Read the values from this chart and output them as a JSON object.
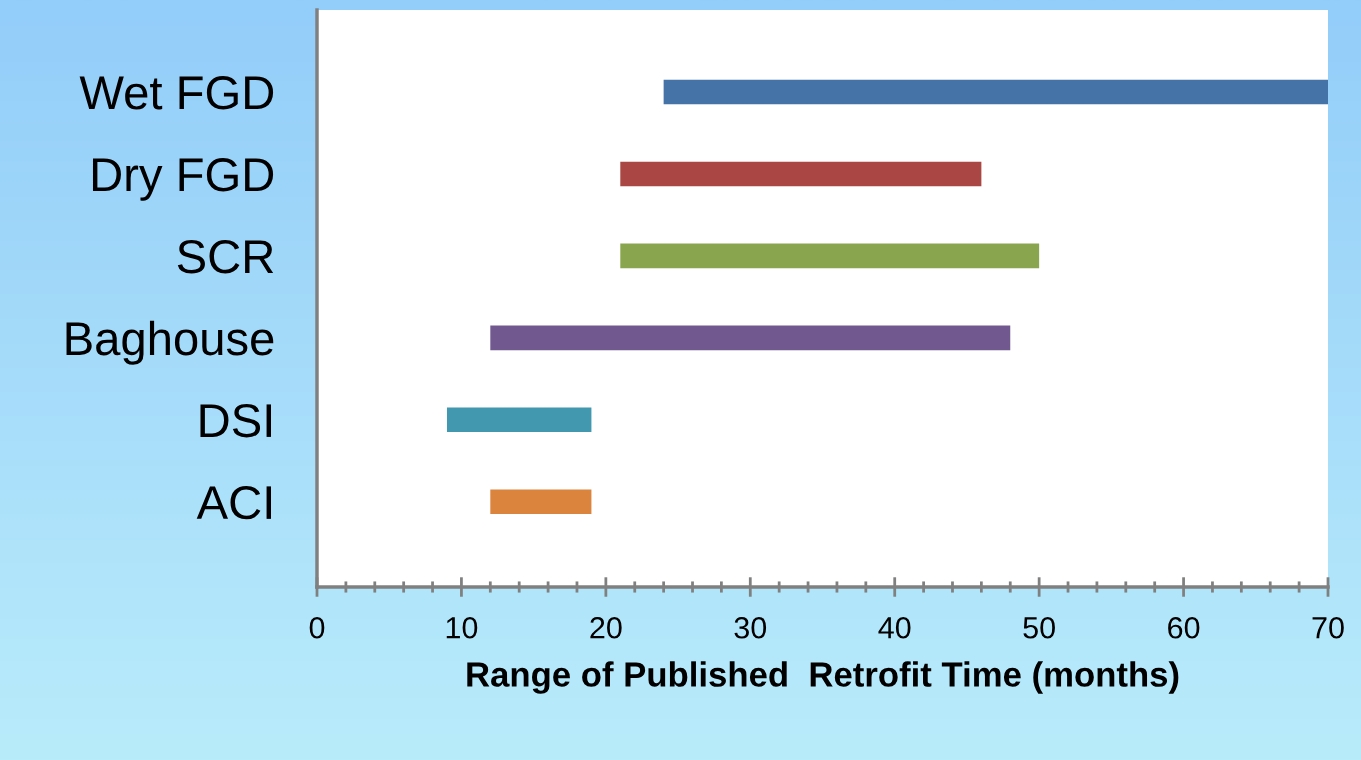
{
  "chart_data": {
    "type": "bar",
    "orientation": "horizontal",
    "categories": [
      "Wet FGD",
      "Dry FGD",
      "SCR",
      "Baghouse",
      "DSI",
      "ACI"
    ],
    "base": [
      24,
      21,
      21,
      12,
      9,
      12
    ],
    "values": [
      46,
      25,
      29,
      36,
      10,
      7
    ],
    "colors": [
      "#4572a7",
      "#aa4643",
      "#89a54e",
      "#71588f",
      "#4198af",
      "#db843d"
    ],
    "xlabel": "Range of Published  Retrofit Time (months)",
    "xlim": [
      0,
      70
    ],
    "xticks": [
      0,
      10,
      20,
      30,
      40,
      50,
      60,
      70
    ],
    "grid": false
  }
}
